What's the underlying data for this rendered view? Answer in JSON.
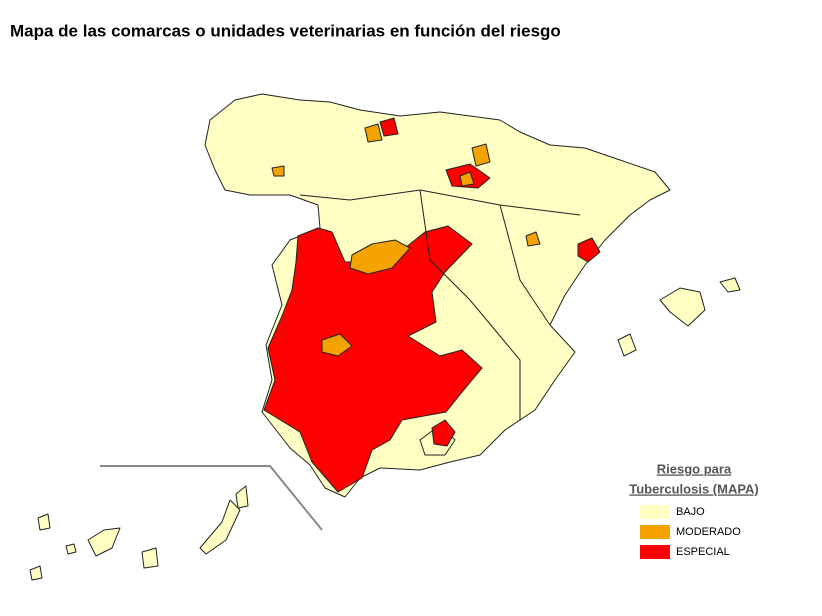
{
  "title": "Mapa de las comarcas o unidades veterinarias en función del riesgo",
  "legend": {
    "title": [
      "Riesgo para",
      "Tuberculosis (MAPA)"
    ],
    "items": [
      {
        "label": "BAJO",
        "color": "#ffffc4"
      },
      {
        "label": "MODERADO",
        "color": "#f5a300"
      },
      {
        "label": "ESPECIAL",
        "color": "#ff0000"
      }
    ]
  }
}
